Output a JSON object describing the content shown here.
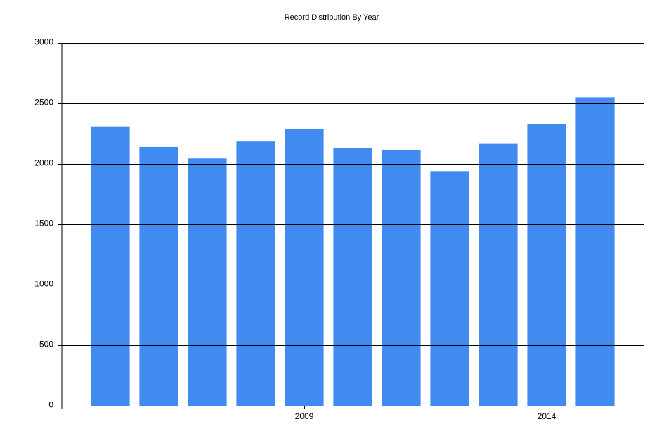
{
  "chart_data": {
    "type": "bar",
    "title": "Record Distribution By Year",
    "categories": [
      null,
      null,
      null,
      null,
      "2009",
      null,
      null,
      null,
      null,
      "2014",
      null
    ],
    "values": [
      2310,
      2140,
      2045,
      2185,
      2290,
      2130,
      2115,
      1940,
      2165,
      2330,
      2550
    ],
    "color": "#418bf0",
    "ylim": [
      0,
      3000
    ],
    "yticks": [
      0,
      500,
      1000,
      1500,
      2000,
      2500,
      3000
    ],
    "grid": true
  }
}
